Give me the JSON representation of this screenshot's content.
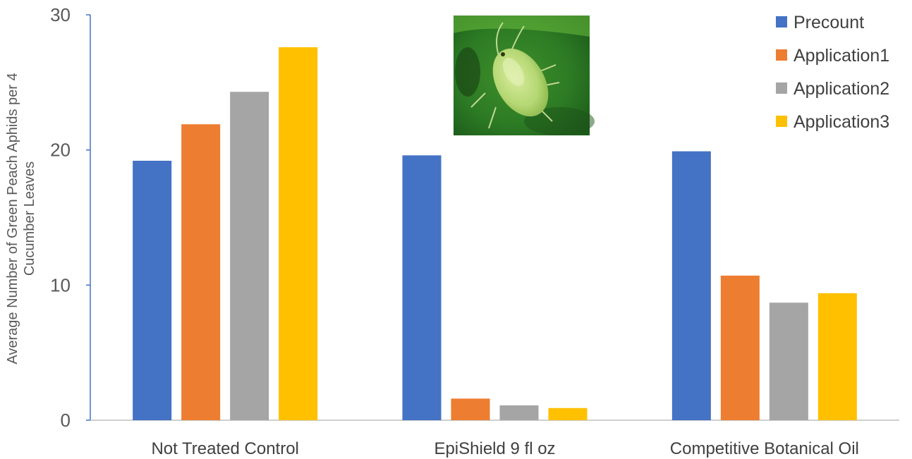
{
  "chart_data": {
    "type": "bar",
    "title": "",
    "xlabel": "",
    "ylabel_lines": [
      "Average Number of Green Peach Aphids per 4",
      "Cucumber Leaves"
    ],
    "ylim": [
      0,
      30
    ],
    "yticks": [
      0,
      10,
      20,
      30
    ],
    "grid": false,
    "legend_position": "top-right",
    "categories": [
      "Not Treated Control",
      "EpiShield 9 fl oz",
      "Competitive Botanical Oil"
    ],
    "series": [
      {
        "name": "Precount",
        "color": "#4472C4",
        "values": [
          19.2,
          19.6,
          19.9
        ]
      },
      {
        "name": "Application1",
        "color": "#ED7D31",
        "values": [
          21.9,
          1.6,
          10.7
        ]
      },
      {
        "name": "Application2",
        "color": "#A5A5A5",
        "values": [
          24.3,
          1.1,
          8.7
        ]
      },
      {
        "name": "Application3",
        "color": "#FFC000",
        "values": [
          27.6,
          0.9,
          9.4
        ]
      }
    ],
    "inset_image": "green-peach-aphid-on-cucumber-leaf-photo"
  }
}
